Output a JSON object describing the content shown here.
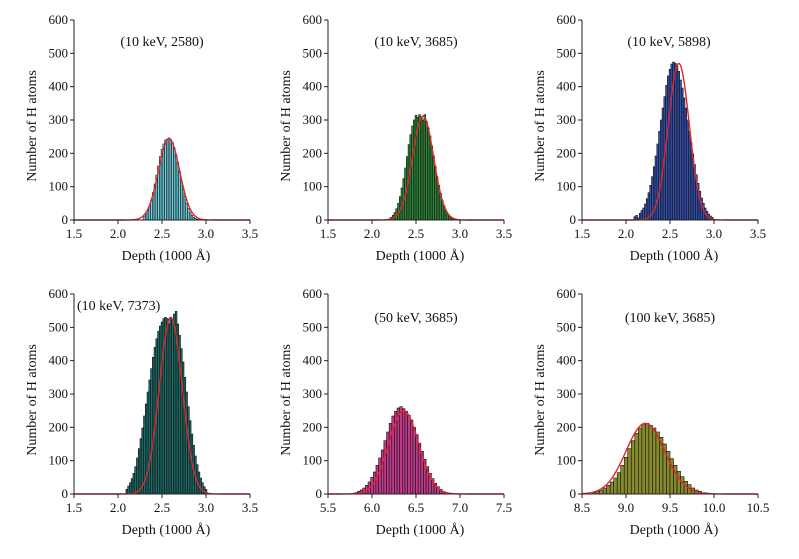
{
  "chart_data": [
    {
      "type": "bar",
      "annotation": "(10 keV, 2580)",
      "xlabel": "Depth (1000 Å)",
      "ylabel": "Number of H atoms",
      "xlim": [
        1.5,
        3.5
      ],
      "ylim": [
        0,
        600
      ],
      "xticks": [
        "1.5",
        "2.0",
        "2.5",
        "3.0",
        "3.5"
      ],
      "yticks": [
        "0",
        "100",
        "200",
        "300",
        "400",
        "500",
        "600"
      ],
      "bar_color": "#6fd6e6",
      "fit_color": "#e0262b",
      "bin_width": 0.02,
      "x": [
        2.3,
        2.32,
        2.34,
        2.36,
        2.38,
        2.4,
        2.42,
        2.44,
        2.46,
        2.48,
        2.5,
        2.52,
        2.54,
        2.56,
        2.58,
        2.6,
        2.62,
        2.64,
        2.66,
        2.68,
        2.7,
        2.72,
        2.74,
        2.76,
        2.78,
        2.8,
        2.82,
        2.84,
        2.86,
        2.88,
        2.9
      ],
      "values": [
        10,
        18,
        28,
        42,
        60,
        82,
        108,
        135,
        162,
        190,
        212,
        228,
        240,
        242,
        246,
        240,
        232,
        216,
        196,
        172,
        146,
        118,
        92,
        70,
        50,
        34,
        22,
        14,
        8,
        4,
        2
      ],
      "fit": {
        "mean": 2.58,
        "sigma": 0.12,
        "peak": 245
      }
    },
    {
      "type": "bar",
      "annotation": "(10 keV, 3685)",
      "xlabel": "Depth (1000 Å)",
      "ylabel": "Number of H atoms",
      "xlim": [
        1.5,
        3.5
      ],
      "ylim": [
        0,
        600
      ],
      "xticks": [
        "1.5",
        "2.0",
        "2.5",
        "3.0",
        "3.5"
      ],
      "yticks": [
        "0",
        "100",
        "200",
        "300",
        "400",
        "500",
        "600"
      ],
      "bar_color": "#2f8f3a",
      "fit_color": "#e0262b",
      "bin_width": 0.02,
      "x": [
        2.2,
        2.22,
        2.24,
        2.26,
        2.28,
        2.3,
        2.32,
        2.34,
        2.36,
        2.38,
        2.4,
        2.42,
        2.44,
        2.46,
        2.48,
        2.5,
        2.52,
        2.54,
        2.56,
        2.58,
        2.6,
        2.62,
        2.64,
        2.66,
        2.68,
        2.7,
        2.72,
        2.74,
        2.76,
        2.78,
        2.8,
        2.82,
        2.84,
        2.86,
        2.88,
        2.9,
        2.92
      ],
      "values": [
        4,
        8,
        14,
        22,
        34,
        50,
        70,
        96,
        124,
        156,
        190,
        226,
        256,
        282,
        300,
        314,
        308,
        316,
        310,
        300,
        316,
        296,
        276,
        252,
        222,
        192,
        160,
        130,
        104,
        80,
        58,
        42,
        28,
        18,
        10,
        6,
        3
      ],
      "fit": {
        "mean": 2.58,
        "sigma": 0.12,
        "peak": 312
      }
    },
    {
      "type": "bar",
      "annotation": "(10 keV, 5898)",
      "xlabel": "Depth (1000 Å)",
      "ylabel": "Number of H atoms",
      "xlim": [
        1.5,
        3.5
      ],
      "ylim": [
        0,
        600
      ],
      "xticks": [
        "1.5",
        "2.0",
        "2.5",
        "3.0",
        "3.5"
      ],
      "yticks": [
        "0",
        "100",
        "200",
        "300",
        "400",
        "500",
        "600"
      ],
      "bar_color": "#3553b5",
      "fit_color": "#e0262b",
      "bin_width": 0.02,
      "x": [
        2.1,
        2.12,
        2.14,
        2.16,
        2.18,
        2.2,
        2.22,
        2.24,
        2.26,
        2.28,
        2.3,
        2.32,
        2.34,
        2.36,
        2.38,
        2.4,
        2.42,
        2.44,
        2.46,
        2.48,
        2.5,
        2.52,
        2.54,
        2.56,
        2.58,
        2.6,
        2.62,
        2.64,
        2.66,
        2.68,
        2.7,
        2.72,
        2.74,
        2.76,
        2.78,
        2.8,
        2.82,
        2.84,
        2.86,
        2.88,
        2.9,
        2.92,
        2.94,
        2.96,
        2.98
      ],
      "values": [
        10,
        14,
        6,
        20,
        28,
        36,
        48,
        64,
        82,
        104,
        130,
        160,
        192,
        228,
        266,
        300,
        336,
        370,
        404,
        432,
        452,
        468,
        474,
        470,
        462,
        446,
        420,
        396,
        366,
        336,
        300,
        266,
        232,
        198,
        166,
        136,
        110,
        86,
        66,
        50,
        36,
        26,
        18,
        12,
        8
      ],
      "fit": {
        "mean": 2.6,
        "sigma": 0.12,
        "peak": 470
      }
    },
    {
      "type": "bar",
      "annotation": "(10 keV, 7373)",
      "xlabel": "Depth (1000 Å)",
      "ylabel": "Number of H atoms",
      "xlim": [
        1.5,
        3.5
      ],
      "ylim": [
        0,
        600
      ],
      "xticks": [
        "1.5",
        "2.0",
        "2.5",
        "3.0",
        "3.5"
      ],
      "yticks": [
        "0",
        "100",
        "200",
        "300",
        "400",
        "500",
        "600"
      ],
      "bar_color": "#1c6f6b",
      "fit_color": "#e0262b",
      "bin_width": 0.02,
      "x": [
        2.1,
        2.12,
        2.14,
        2.16,
        2.18,
        2.2,
        2.22,
        2.24,
        2.26,
        2.28,
        2.3,
        2.32,
        2.34,
        2.36,
        2.38,
        2.4,
        2.42,
        2.44,
        2.46,
        2.48,
        2.5,
        2.52,
        2.54,
        2.56,
        2.58,
        2.6,
        2.62,
        2.64,
        2.66,
        2.68,
        2.7,
        2.72,
        2.74,
        2.76,
        2.78,
        2.8,
        2.82,
        2.84,
        2.86,
        2.88,
        2.9,
        2.92,
        2.94,
        2.96,
        2.98,
        3.0
      ],
      "values": [
        14,
        24,
        34,
        46,
        62,
        82,
        108,
        136,
        166,
        198,
        234,
        270,
        306,
        342,
        376,
        410,
        440,
        466,
        488,
        504,
        516,
        526,
        530,
        526,
        512,
        530,
        520,
        540,
        548,
        510,
        476,
        436,
        396,
        350,
        306,
        262,
        220,
        180,
        146,
        114,
        88,
        66,
        48,
        34,
        22,
        14
      ],
      "fit": {
        "mean": 2.6,
        "sigma": 0.13,
        "peak": 530
      }
    },
    {
      "type": "bar",
      "annotation": "(50 keV, 3685)",
      "xlabel": "Depth (1000 Å)",
      "ylabel": "Number of H atoms",
      "xlim": [
        5.5,
        7.5
      ],
      "ylim": [
        0,
        600
      ],
      "xticks": [
        "5.5",
        "6.0",
        "6.5",
        "7.0",
        "7.5"
      ],
      "yticks": [
        "0",
        "100",
        "200",
        "300",
        "400",
        "500",
        "600"
      ],
      "bar_color": "#c0398a",
      "fit_color": "#e0262b",
      "bin_width": 0.03,
      "x": [
        5.82,
        5.85,
        5.88,
        5.91,
        5.94,
        5.97,
        6.0,
        6.03,
        6.06,
        6.09,
        6.12,
        6.15,
        6.18,
        6.21,
        6.24,
        6.27,
        6.3,
        6.33,
        6.36,
        6.39,
        6.42,
        6.45,
        6.48,
        6.51,
        6.54,
        6.57,
        6.6,
        6.63,
        6.66,
        6.69,
        6.72,
        6.75,
        6.78,
        6.81,
        6.84,
        6.87
      ],
      "values": [
        4,
        8,
        12,
        18,
        26,
        36,
        50,
        66,
        86,
        108,
        132,
        160,
        186,
        212,
        234,
        248,
        258,
        262,
        256,
        248,
        236,
        222,
        200,
        178,
        152,
        128,
        104,
        82,
        62,
        46,
        32,
        22,
        14,
        8,
        5,
        3
      ],
      "fit": {
        "mean": 6.36,
        "sigma": 0.17,
        "peak": 250
      }
    },
    {
      "type": "bar",
      "annotation": "(100 keV, 3685)",
      "xlabel": "Depth (1000 Å)",
      "ylabel": "Number of H atoms",
      "xlim": [
        8.5,
        10.5
      ],
      "ylim": [
        0,
        600
      ],
      "xticks": [
        "8.5",
        "9.0",
        "9.5",
        "10.0",
        "10.5"
      ],
      "yticks": [
        "0",
        "100",
        "200",
        "300",
        "400",
        "500",
        "600"
      ],
      "bar_color": "#858a2a",
      "fit_color": "#e0262b",
      "bin_width": 0.04,
      "x": [
        8.64,
        8.68,
        8.72,
        8.76,
        8.8,
        8.84,
        8.88,
        8.92,
        8.96,
        9.0,
        9.04,
        9.08,
        9.12,
        9.16,
        9.2,
        9.24,
        9.28,
        9.32,
        9.36,
        9.4,
        9.44,
        9.48,
        9.52,
        9.56,
        9.6,
        9.64,
        9.68,
        9.72,
        9.76,
        9.8,
        9.84,
        9.88,
        9.92,
        9.96
      ],
      "values": [
        4,
        8,
        12,
        18,
        26,
        36,
        48,
        64,
        86,
        110,
        136,
        160,
        182,
        198,
        210,
        212,
        206,
        198,
        186,
        170,
        150,
        128,
        106,
        86,
        68,
        52,
        38,
        28,
        18,
        12,
        8,
        4,
        3,
        2
      ],
      "fit": {
        "mean": 9.22,
        "sigma": 0.22,
        "peak": 212
      }
    }
  ]
}
